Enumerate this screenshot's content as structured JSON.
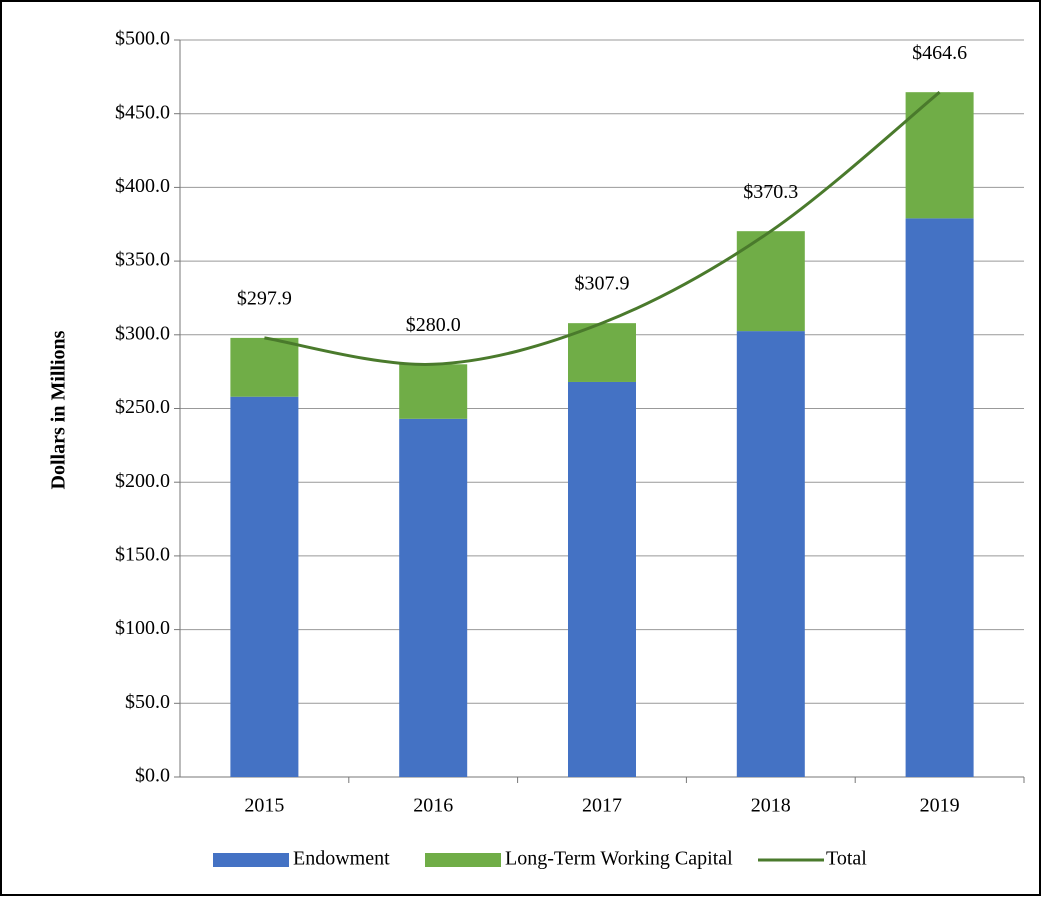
{
  "chart_data": {
    "type": "bar",
    "stacked": true,
    "y_label": "Dollars in Millions",
    "categories": [
      "2015",
      "2016",
      "2017",
      "2018",
      "2019"
    ],
    "series": [
      {
        "name": "Endowment",
        "color": "#4472c4",
        "values": [
          258.0,
          243.0,
          268.0,
          302.5,
          379.0
        ]
      },
      {
        "name": "Long-Term Working Capital",
        "color": "#70ad47",
        "values": [
          39.9,
          37.0,
          39.9,
          67.8,
          85.6
        ]
      },
      {
        "name": "Total",
        "type": "line",
        "color": "#4a7a2c",
        "values": [
          297.9,
          280.0,
          307.9,
          370.3,
          464.6
        ],
        "value_labels": [
          "$297.9",
          "$280.0",
          "$307.9",
          "$370.3",
          "$464.6"
        ]
      }
    ],
    "ylim": [
      0,
      500
    ],
    "yticks": [
      {
        "value": 0,
        "label": "$0.0"
      },
      {
        "value": 50,
        "label": "$50.0"
      },
      {
        "value": 100,
        "label": "$100.0"
      },
      {
        "value": 150,
        "label": "$150.0"
      },
      {
        "value": 200,
        "label": "$200.0"
      },
      {
        "value": 250,
        "label": "$250.0"
      },
      {
        "value": 300,
        "label": "$300.0"
      },
      {
        "value": 350,
        "label": "$350.0"
      },
      {
        "value": 400,
        "label": "$400.0"
      },
      {
        "value": 450,
        "label": "$450.0"
      },
      {
        "value": 500,
        "label": "$500.0"
      }
    ],
    "grid": true,
    "legend": "bottom"
  }
}
